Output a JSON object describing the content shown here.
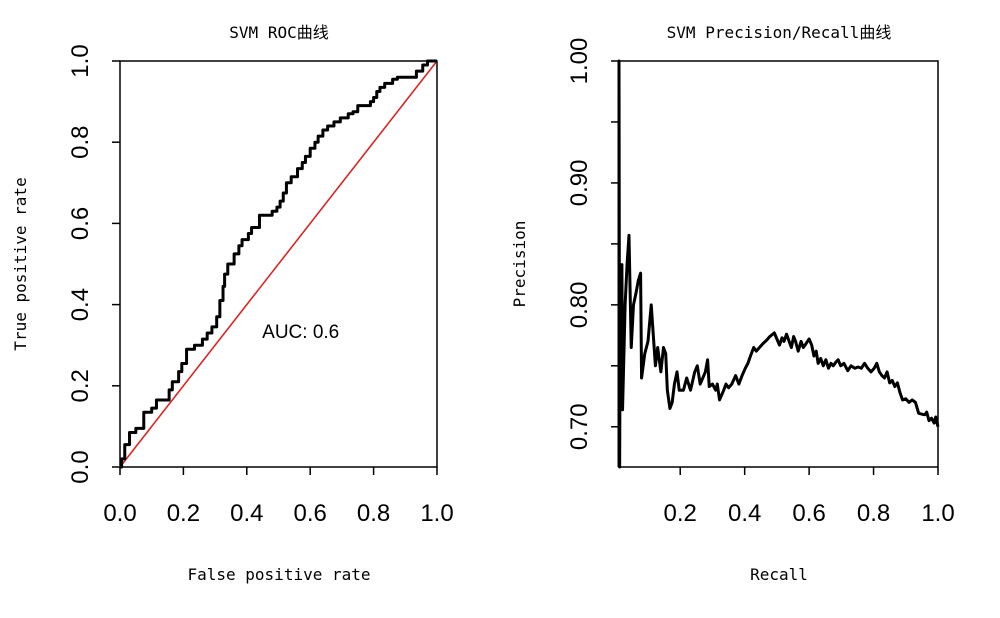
{
  "chart_data": [
    {
      "type": "line",
      "title": "SVM ROC曲线",
      "xlabel": "False positive rate",
      "ylabel": "True positive rate",
      "xlim": [
        0,
        1
      ],
      "ylim": [
        0,
        1
      ],
      "xticks": [
        "0.0",
        "0.2",
        "0.4",
        "0.6",
        "0.8",
        "1.0"
      ],
      "yticks": [
        "0.0",
        "0.2",
        "0.4",
        "0.6",
        "0.8",
        "1.0"
      ],
      "xtick_values": [
        0,
        0.2,
        0.4,
        0.6,
        0.8,
        1.0
      ],
      "ytick_values": [
        0,
        0.2,
        0.4,
        0.6,
        0.8,
        1.0
      ],
      "annotation": {
        "text": "AUC: 0.6",
        "x": 0.57,
        "y": 0.335
      },
      "reference_line": {
        "from": [
          0,
          0
        ],
        "to": [
          1,
          1
        ],
        "color": "#d62728"
      },
      "series": [
        {
          "points": [
            [
              0,
              0
            ],
            [
              0.005,
              0
            ],
            [
              0.005,
              0.02
            ],
            [
              0.015,
              0.02
            ],
            [
              0.015,
              0.055
            ],
            [
              0.03,
              0.055
            ],
            [
              0.03,
              0.085
            ],
            [
              0.05,
              0.085
            ],
            [
              0.05,
              0.095
            ],
            [
              0.075,
              0.095
            ],
            [
              0.075,
              0.135
            ],
            [
              0.1,
              0.135
            ],
            [
              0.1,
              0.145
            ],
            [
              0.115,
              0.145
            ],
            [
              0.115,
              0.165
            ],
            [
              0.155,
              0.165
            ],
            [
              0.155,
              0.19
            ],
            [
              0.165,
              0.19
            ],
            [
              0.165,
              0.21
            ],
            [
              0.185,
              0.21
            ],
            [
              0.185,
              0.235
            ],
            [
              0.195,
              0.235
            ],
            [
              0.195,
              0.255
            ],
            [
              0.21,
              0.255
            ],
            [
              0.21,
              0.29
            ],
            [
              0.235,
              0.29
            ],
            [
              0.235,
              0.3
            ],
            [
              0.26,
              0.3
            ],
            [
              0.26,
              0.315
            ],
            [
              0.275,
              0.315
            ],
            [
              0.275,
              0.33
            ],
            [
              0.29,
              0.33
            ],
            [
              0.29,
              0.345
            ],
            [
              0.305,
              0.345
            ],
            [
              0.305,
              0.37
            ],
            [
              0.315,
              0.37
            ],
            [
              0.315,
              0.41
            ],
            [
              0.325,
              0.41
            ],
            [
              0.325,
              0.445
            ],
            [
              0.33,
              0.445
            ],
            [
              0.33,
              0.475
            ],
            [
              0.34,
              0.475
            ],
            [
              0.34,
              0.5
            ],
            [
              0.36,
              0.5
            ],
            [
              0.36,
              0.525
            ],
            [
              0.375,
              0.525
            ],
            [
              0.375,
              0.545
            ],
            [
              0.385,
              0.545
            ],
            [
              0.385,
              0.56
            ],
            [
              0.405,
              0.56
            ],
            [
              0.405,
              0.575
            ],
            [
              0.415,
              0.575
            ],
            [
              0.415,
              0.59
            ],
            [
              0.44,
              0.59
            ],
            [
              0.44,
              0.62
            ],
            [
              0.48,
              0.62
            ],
            [
              0.48,
              0.63
            ],
            [
              0.495,
              0.63
            ],
            [
              0.495,
              0.64
            ],
            [
              0.505,
              0.64
            ],
            [
              0.505,
              0.655
            ],
            [
              0.515,
              0.655
            ],
            [
              0.515,
              0.675
            ],
            [
              0.525,
              0.675
            ],
            [
              0.525,
              0.7
            ],
            [
              0.54,
              0.7
            ],
            [
              0.54,
              0.715
            ],
            [
              0.56,
              0.715
            ],
            [
              0.56,
              0.735
            ],
            [
              0.575,
              0.735
            ],
            [
              0.575,
              0.75
            ],
            [
              0.585,
              0.75
            ],
            [
              0.585,
              0.765
            ],
            [
              0.6,
              0.765
            ],
            [
              0.6,
              0.785
            ],
            [
              0.615,
              0.785
            ],
            [
              0.615,
              0.8
            ],
            [
              0.625,
              0.8
            ],
            [
              0.625,
              0.815
            ],
            [
              0.64,
              0.815
            ],
            [
              0.64,
              0.83
            ],
            [
              0.655,
              0.83
            ],
            [
              0.655,
              0.84
            ],
            [
              0.675,
              0.84
            ],
            [
              0.675,
              0.85
            ],
            [
              0.695,
              0.85
            ],
            [
              0.695,
              0.86
            ],
            [
              0.72,
              0.86
            ],
            [
              0.72,
              0.87
            ],
            [
              0.735,
              0.87
            ],
            [
              0.735,
              0.875
            ],
            [
              0.75,
              0.875
            ],
            [
              0.75,
              0.89
            ],
            [
              0.79,
              0.89
            ],
            [
              0.79,
              0.9
            ],
            [
              0.8,
              0.9
            ],
            [
              0.8,
              0.91
            ],
            [
              0.81,
              0.91
            ],
            [
              0.81,
              0.925
            ],
            [
              0.82,
              0.925
            ],
            [
              0.82,
              0.935
            ],
            [
              0.835,
              0.935
            ],
            [
              0.835,
              0.945
            ],
            [
              0.86,
              0.945
            ],
            [
              0.86,
              0.955
            ],
            [
              0.875,
              0.955
            ],
            [
              0.875,
              0.96
            ],
            [
              0.935,
              0.96
            ],
            [
              0.935,
              0.975
            ],
            [
              0.955,
              0.975
            ],
            [
              0.955,
              0.99
            ],
            [
              0.97,
              0.99
            ],
            [
              0.97,
              1.0
            ],
            [
              1.0,
              1.0
            ]
          ]
        }
      ]
    },
    {
      "type": "line",
      "title": "SVM Precision/Recall曲线",
      "xlabel": "Recall",
      "ylabel": "Precision",
      "xlim": [
        0.01,
        1
      ],
      "ylim": [
        0.667,
        1.0
      ],
      "xticks": [
        "0.2",
        "0.4",
        "0.6",
        "0.8",
        "1.0"
      ],
      "yticks": [
        "0.70",
        "0.80",
        "0.90",
        "1.00"
      ],
      "xtick_values": [
        0.2,
        0.4,
        0.6,
        0.8,
        1.0
      ],
      "ytick_values": [
        0.7,
        0.8,
        0.9,
        1.0
      ],
      "minor_ytick_values": [
        0.75,
        0.85,
        0.95
      ],
      "series": [
        {
          "points": [
            [
              0.01,
              0.667
            ],
            [
              0.01,
              1.0
            ],
            [
              0.012,
              0.667
            ],
            [
              0.014,
              0.8
            ],
            [
              0.019,
              0.833
            ],
            [
              0.021,
              0.714
            ],
            [
              0.029,
              0.8
            ],
            [
              0.035,
              0.833
            ],
            [
              0.041,
              0.857
            ],
            [
              0.048,
              0.765
            ],
            [
              0.055,
              0.8
            ],
            [
              0.063,
              0.81
            ],
            [
              0.07,
              0.82
            ],
            [
              0.077,
              0.826
            ],
            [
              0.08,
              0.74
            ],
            [
              0.09,
              0.76
            ],
            [
              0.1,
              0.77
            ],
            [
              0.11,
              0.8
            ],
            [
              0.123,
              0.75
            ],
            [
              0.13,
              0.765
            ],
            [
              0.14,
              0.745
            ],
            [
              0.148,
              0.765
            ],
            [
              0.155,
              0.76
            ],
            [
              0.16,
              0.73
            ],
            [
              0.168,
              0.715
            ],
            [
              0.175,
              0.72
            ],
            [
              0.182,
              0.735
            ],
            [
              0.19,
              0.745
            ],
            [
              0.197,
              0.73
            ],
            [
              0.21,
              0.73
            ],
            [
              0.22,
              0.74
            ],
            [
              0.232,
              0.73
            ],
            [
              0.245,
              0.745
            ],
            [
              0.253,
              0.75
            ],
            [
              0.262,
              0.735
            ],
            [
              0.278,
              0.745
            ],
            [
              0.285,
              0.755
            ],
            [
              0.29,
              0.733
            ],
            [
              0.3,
              0.735
            ],
            [
              0.31,
              0.73
            ],
            [
              0.315,
              0.735
            ],
            [
              0.322,
              0.722
            ],
            [
              0.335,
              0.73
            ],
            [
              0.342,
              0.735
            ],
            [
              0.35,
              0.732
            ],
            [
              0.36,
              0.735
            ],
            [
              0.372,
              0.742
            ],
            [
              0.382,
              0.735
            ],
            [
              0.392,
              0.742
            ],
            [
              0.402,
              0.748
            ],
            [
              0.41,
              0.752
            ],
            [
              0.418,
              0.758
            ],
            [
              0.428,
              0.765
            ],
            [
              0.436,
              0.762
            ],
            [
              0.446,
              0.765
            ],
            [
              0.456,
              0.768
            ],
            [
              0.468,
              0.771
            ],
            [
              0.478,
              0.774
            ],
            [
              0.492,
              0.777
            ],
            [
              0.5,
              0.772
            ],
            [
              0.508,
              0.767
            ],
            [
              0.516,
              0.773
            ],
            [
              0.522,
              0.77
            ],
            [
              0.53,
              0.776
            ],
            [
              0.538,
              0.77
            ],
            [
              0.545,
              0.765
            ],
            [
              0.552,
              0.774
            ],
            [
              0.558,
              0.77
            ],
            [
              0.566,
              0.762
            ],
            [
              0.575,
              0.77
            ],
            [
              0.582,
              0.765
            ],
            [
              0.59,
              0.768
            ],
            [
              0.6,
              0.772
            ],
            [
              0.608,
              0.767
            ],
            [
              0.615,
              0.758
            ],
            [
              0.622,
              0.762
            ],
            [
              0.628,
              0.752
            ],
            [
              0.636,
              0.756
            ],
            [
              0.644,
              0.75
            ],
            [
              0.652,
              0.755
            ],
            [
              0.66,
              0.748
            ],
            [
              0.668,
              0.752
            ],
            [
              0.675,
              0.75
            ],
            [
              0.683,
              0.753
            ],
            [
              0.69,
              0.755
            ],
            [
              0.698,
              0.75
            ],
            [
              0.708,
              0.752
            ],
            [
              0.72,
              0.746
            ],
            [
              0.73,
              0.75
            ],
            [
              0.742,
              0.748
            ],
            [
              0.752,
              0.749
            ],
            [
              0.762,
              0.748
            ],
            [
              0.772,
              0.752
            ],
            [
              0.782,
              0.748
            ],
            [
              0.792,
              0.745
            ],
            [
              0.802,
              0.748
            ],
            [
              0.81,
              0.752
            ],
            [
              0.818,
              0.745
            ],
            [
              0.826,
              0.742
            ],
            [
              0.834,
              0.74
            ],
            [
              0.842,
              0.745
            ],
            [
              0.85,
              0.736
            ],
            [
              0.858,
              0.738
            ],
            [
              0.866,
              0.733
            ],
            [
              0.874,
              0.736
            ],
            [
              0.882,
              0.728
            ],
            [
              0.89,
              0.722
            ],
            [
              0.9,
              0.723
            ],
            [
              0.91,
              0.72
            ],
            [
              0.92,
              0.722
            ],
            [
              0.93,
              0.72
            ],
            [
              0.94,
              0.711
            ],
            [
              0.955,
              0.71
            ],
            [
              0.96,
              0.71
            ],
            [
              0.965,
              0.712
            ],
            [
              0.972,
              0.705
            ],
            [
              0.98,
              0.707
            ],
            [
              0.988,
              0.703
            ],
            [
              0.993,
              0.708
            ],
            [
              1.0,
              0.7
            ]
          ]
        }
      ]
    }
  ]
}
